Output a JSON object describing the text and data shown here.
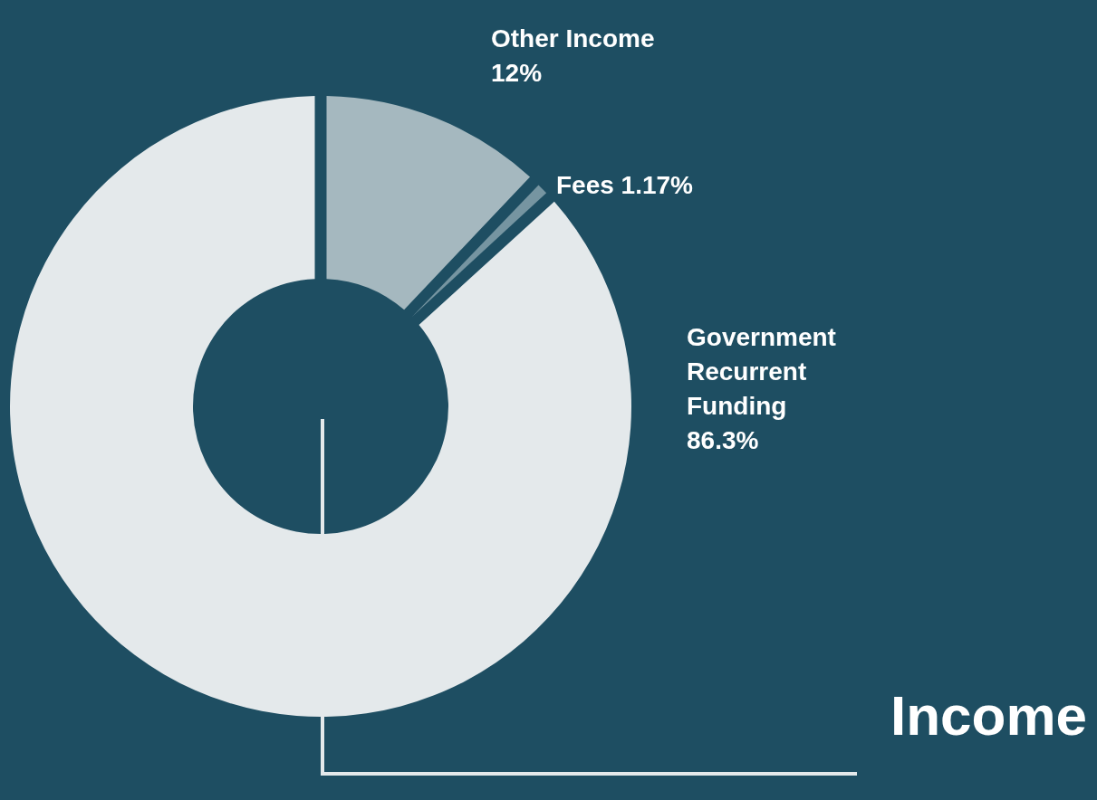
{
  "chart_data": {
    "type": "donut",
    "title": "Income",
    "categories": [
      "Other Income",
      "Fees",
      "Government Recurrent Funding"
    ],
    "values": [
      12,
      1.17,
      86.3
    ],
    "value_labels": [
      "12%",
      "1.17%",
      "86.3%"
    ],
    "colors": [
      "#a5b8bf",
      "#7695a1",
      "#e4e9eb"
    ]
  }
}
